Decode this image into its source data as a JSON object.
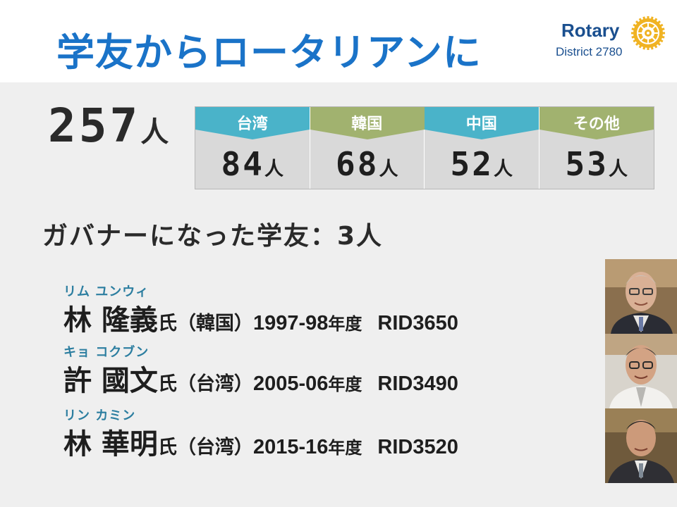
{
  "title": "学友からロータリアンに",
  "logo": {
    "word": "Rotary",
    "district": "District 2780"
  },
  "total": {
    "number": "257",
    "unit": "人"
  },
  "breakdown": [
    {
      "label": "台湾",
      "value": "84",
      "unit": "人",
      "color": "#4ab3c9"
    },
    {
      "label": "韓国",
      "value": "68",
      "unit": "人",
      "color": "#a1b26f"
    },
    {
      "label": "中国",
      "value": "52",
      "unit": "人",
      "color": "#4ab3c9"
    },
    {
      "label": "その他",
      "value": "53",
      "unit": "人",
      "color": "#a1b26f"
    }
  ],
  "subhead": "ガバナーになった学友：3人",
  "governors": [
    {
      "ruby": "リム ユンウィ",
      "name": "林 隆義",
      "honor": "氏",
      "country": "（韓国）",
      "years": "1997-98",
      "years_unit": "年度",
      "rid": "RID3650"
    },
    {
      "ruby": "キョ コクブン",
      "name": "許 國文",
      "honor": "氏",
      "country": "（台湾）",
      "years": "2005-06",
      "years_unit": "年度",
      "rid": "RID3490"
    },
    {
      "ruby": "リン カミン",
      "name": "林 華明",
      "honor": "氏",
      "country": "（台湾）",
      "years": "2015-16",
      "years_unit": "年度",
      "rid": "RID3520"
    }
  ]
}
